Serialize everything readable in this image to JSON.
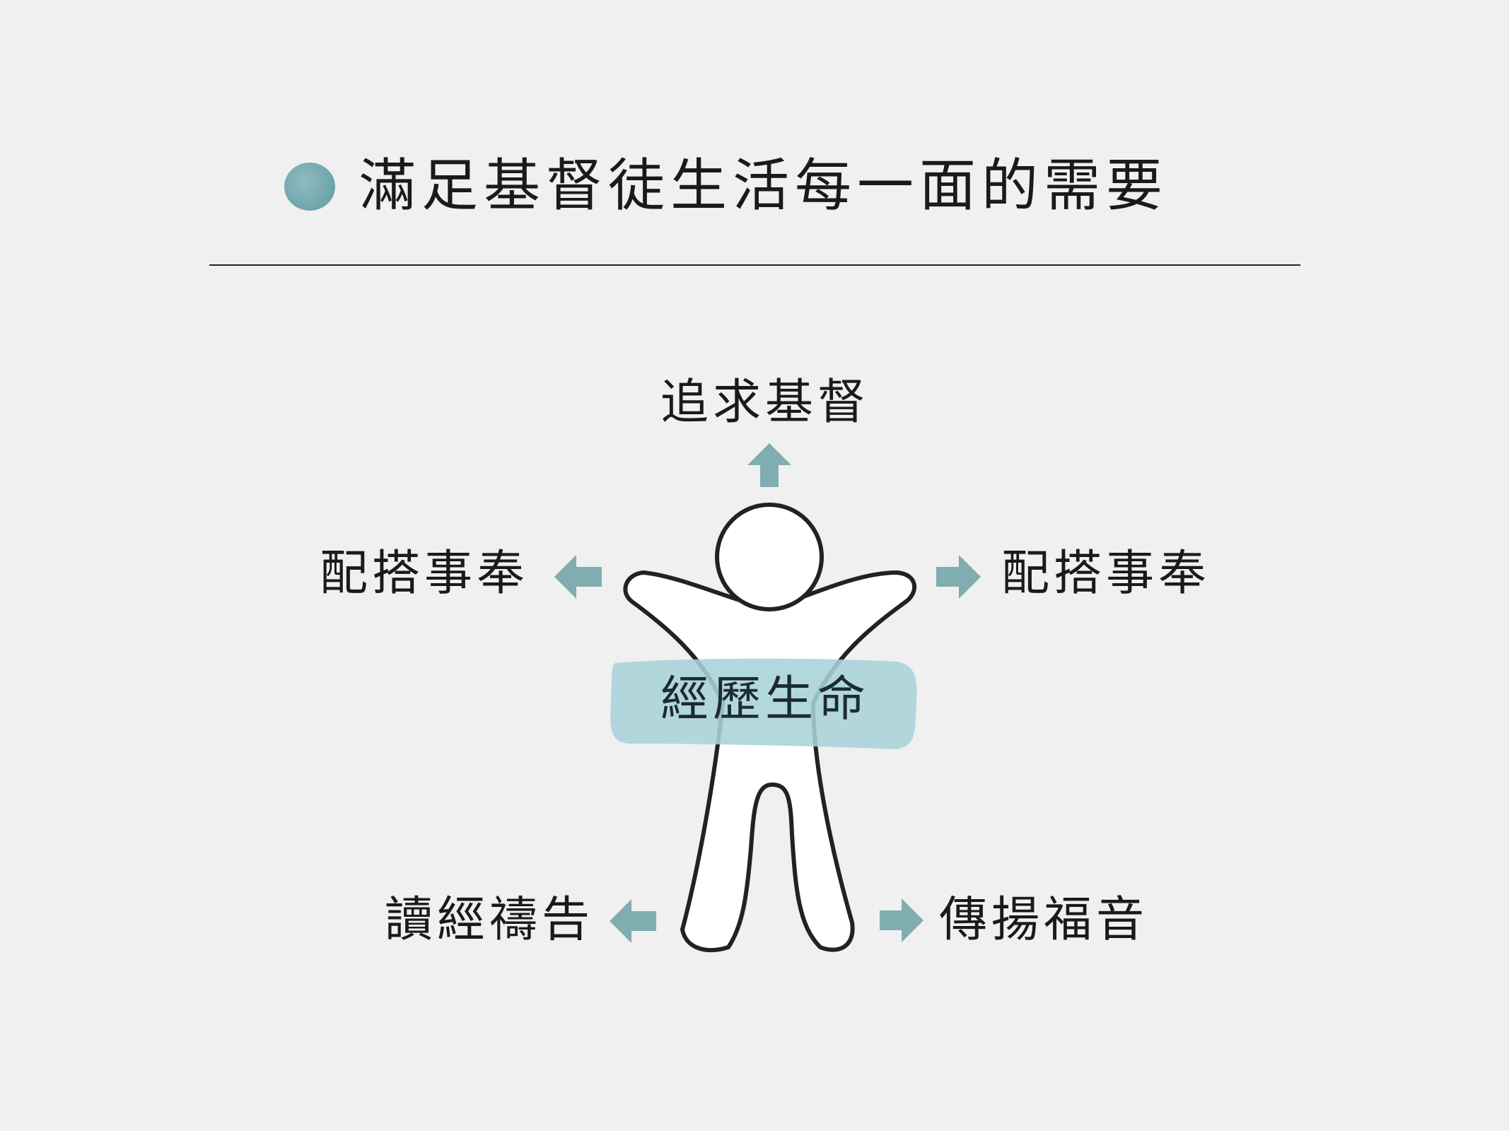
{
  "title": "滿足基督徒生活每一面的需要",
  "diagram": {
    "top": "追求基督",
    "left": "配搭事奉",
    "right": "配搭事奉",
    "bottom_left": "讀經禱告",
    "bottom_right": "傳揚福音",
    "center": "經歷生命"
  },
  "colors": {
    "background": "#f0f0f0",
    "accent": "#7fadb0",
    "highlight": "#a7d3da"
  }
}
